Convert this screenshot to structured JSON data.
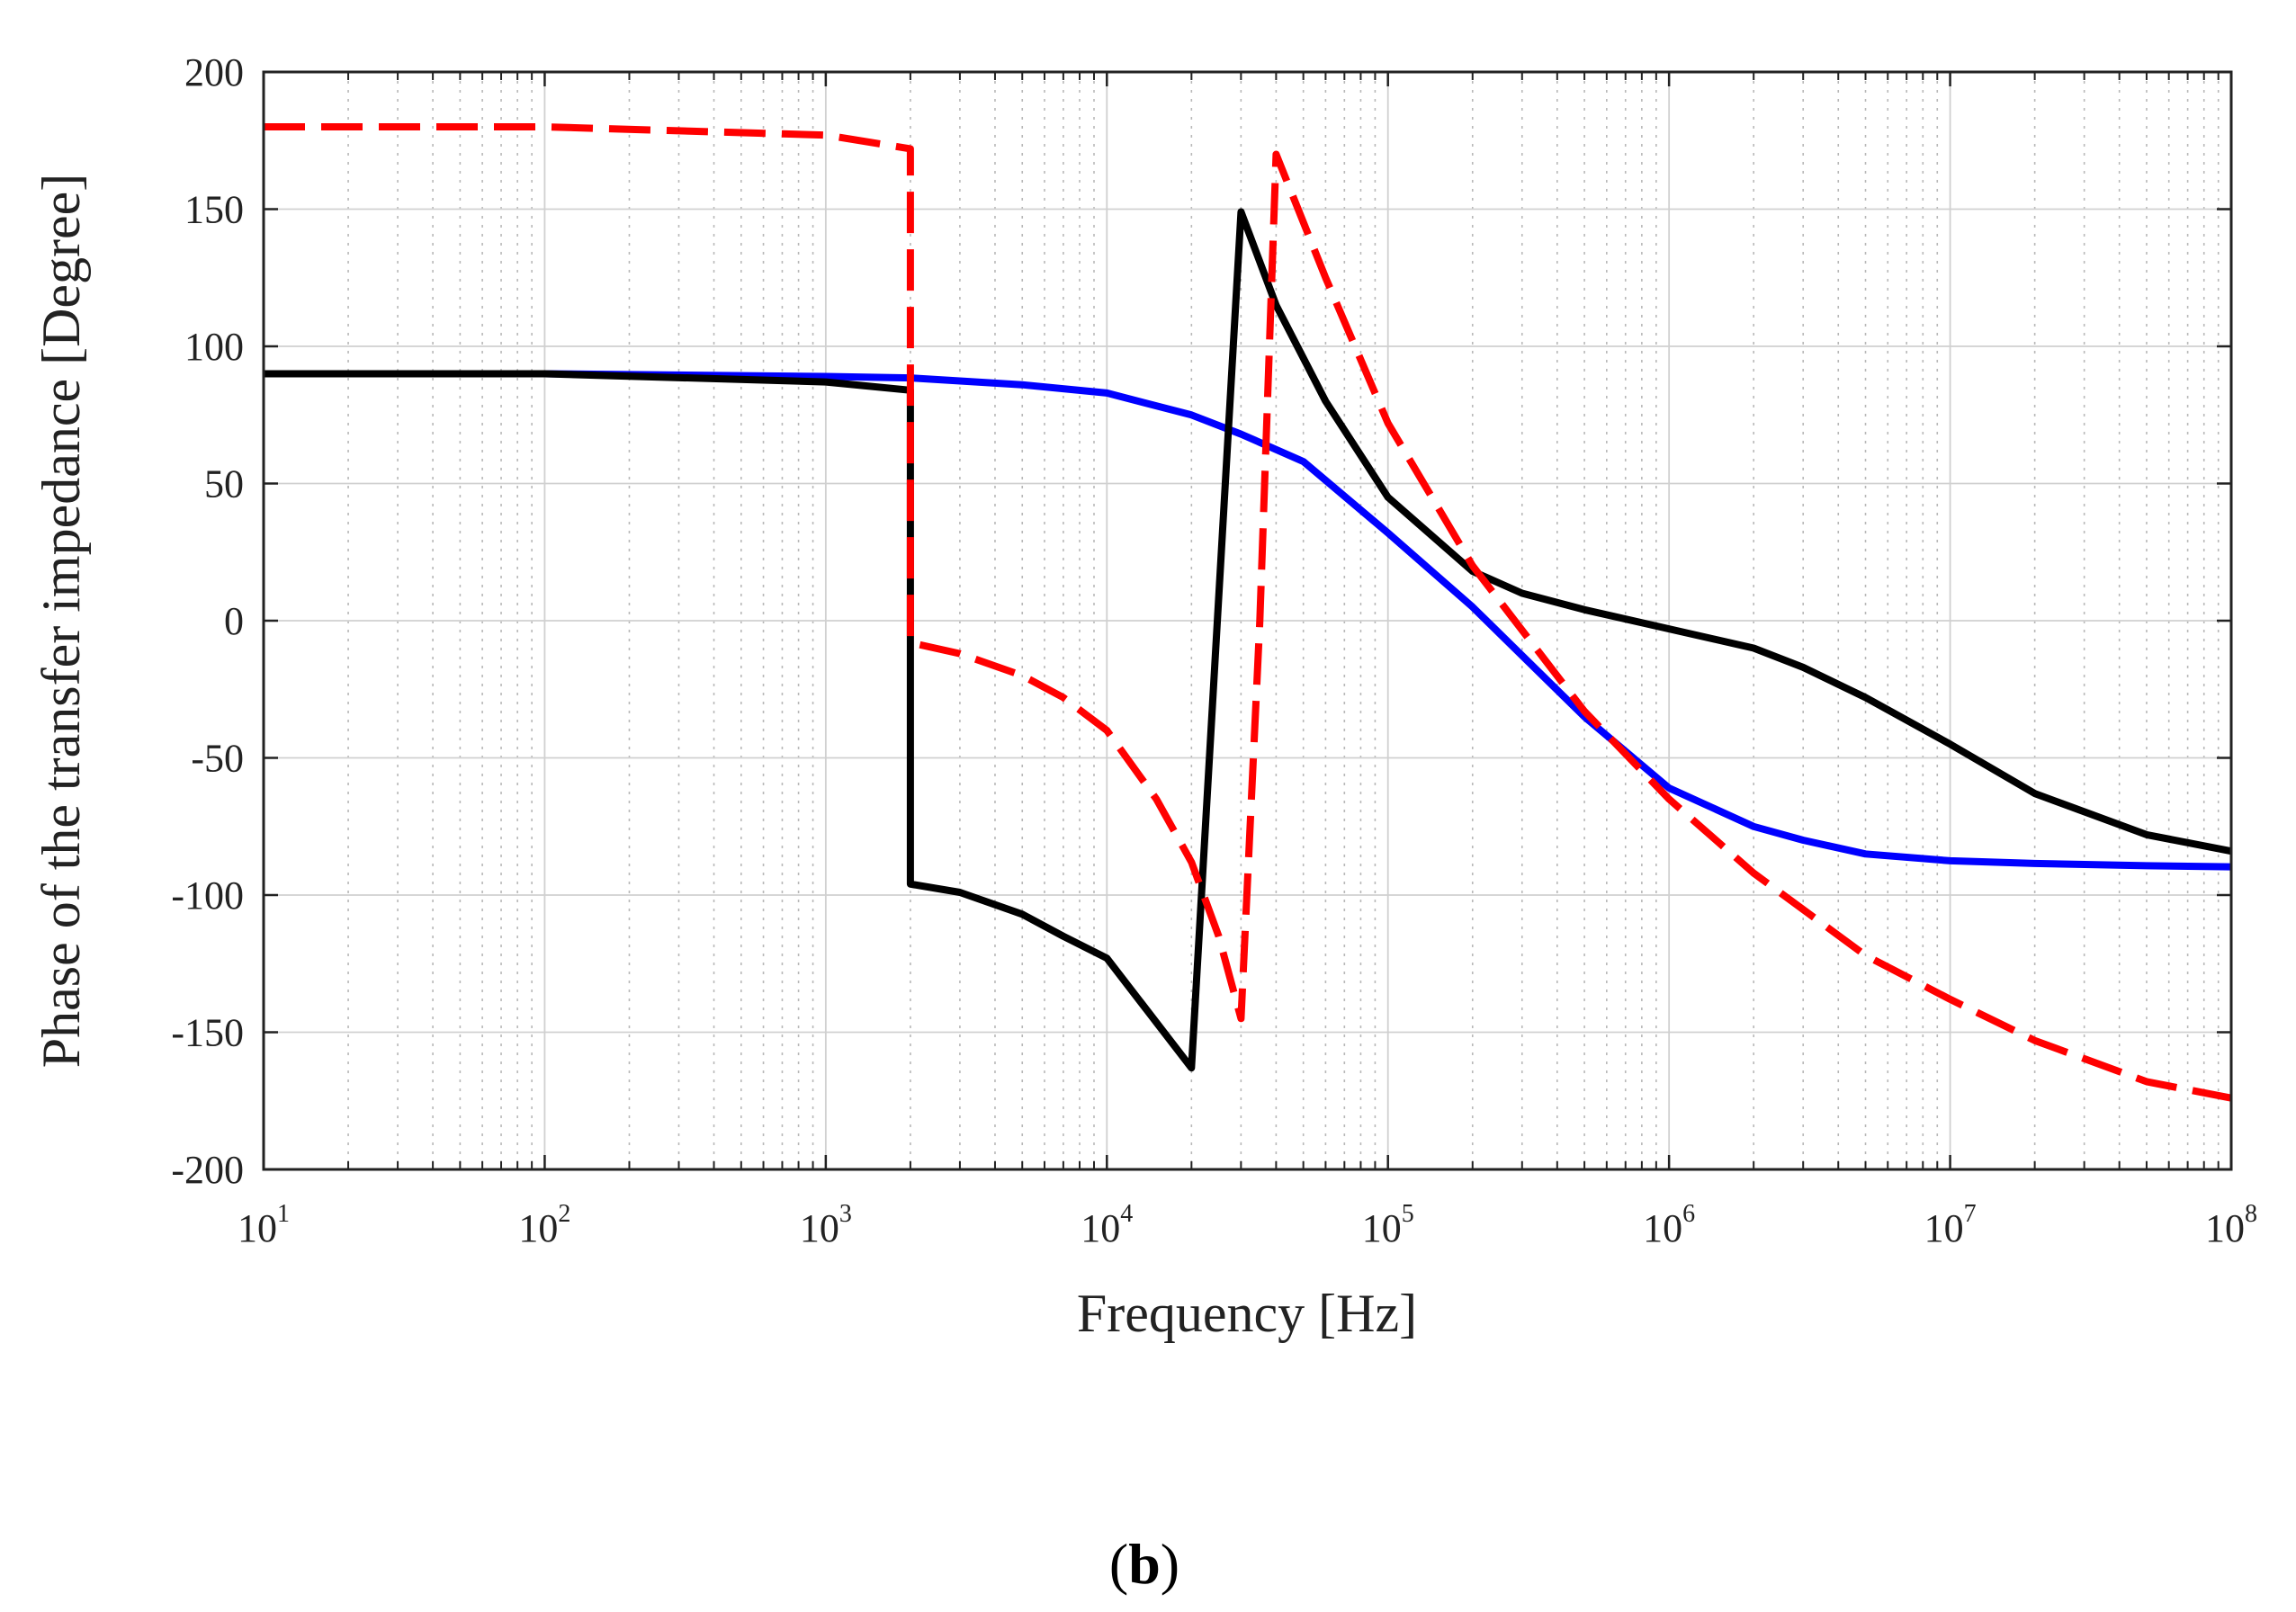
{
  "chart_data": {
    "type": "line",
    "title": "",
    "xlabel": "Frequency [Hz]",
    "ylabel": "Phase of the transfer impedance [Degree]",
    "xscale": "log",
    "xlim": [
      10,
      100000000
    ],
    "ylim": [
      -200,
      200
    ],
    "grid": true,
    "x_ticks": [
      {
        "base": "10",
        "exp": "1",
        "value": 10
      },
      {
        "base": "10",
        "exp": "2",
        "value": 100
      },
      {
        "base": "10",
        "exp": "3",
        "value": 1000
      },
      {
        "base": "10",
        "exp": "4",
        "value": 10000
      },
      {
        "base": "10",
        "exp": "5",
        "value": 100000
      },
      {
        "base": "10",
        "exp": "6",
        "value": 1000000
      },
      {
        "base": "10",
        "exp": "7",
        "value": 10000000
      },
      {
        "base": "10",
        "exp": "8",
        "value": 100000000
      }
    ],
    "y_ticks": [
      {
        "label": "200",
        "value": 200
      },
      {
        "label": "150",
        "value": 150
      },
      {
        "label": "100",
        "value": 100
      },
      {
        "label": "50",
        "value": 50
      },
      {
        "label": "0",
        "value": 0
      },
      {
        "label": "-50",
        "value": -50
      },
      {
        "label": "-100",
        "value": -100
      },
      {
        "label": "-150",
        "value": -150
      },
      {
        "label": "-200",
        "value": -200
      }
    ],
    "panel_label": {
      "open": "(",
      "letter": "b",
      "close": ")"
    },
    "series": [
      {
        "name": "blue",
        "color": "#0000ff",
        "style": "solid",
        "x": [
          10,
          100,
          1000,
          2000,
          5000,
          10000,
          20000,
          30000,
          50000,
          100000,
          200000,
          500000,
          1000000,
          2000000,
          3000000,
          5000000,
          10000000,
          20000000,
          50000000,
          100000000
        ],
        "y": [
          90,
          90,
          89,
          88.5,
          86,
          83,
          75,
          68,
          58,
          32,
          5,
          -35,
          -61,
          -75,
          -80,
          -85,
          -87.5,
          -88.5,
          -89.3,
          -89.7
        ]
      },
      {
        "name": "black",
        "color": "#000000",
        "style": "solid",
        "x": [
          10,
          100,
          1000,
          2000,
          2000,
          3000,
          5000,
          7000,
          10000,
          20000,
          30000,
          40000,
          60000,
          100000,
          200000,
          300000,
          500000,
          1000000,
          2000000,
          3000000,
          5000000,
          10000000,
          20000000,
          50000000,
          100000000
        ],
        "y": [
          90,
          90,
          87,
          84,
          -96,
          -99,
          -107,
          -115,
          -123,
          -163,
          149,
          115,
          80,
          45,
          18,
          10,
          4,
          -3,
          -10,
          -17,
          -28,
          -45,
          -63,
          -78,
          -84
        ]
      },
      {
        "name": "red-dashed",
        "color": "#ff0000",
        "style": "dashed",
        "x": [
          10,
          100,
          1000,
          2000,
          2000,
          3000,
          5000,
          7000,
          10000,
          15000,
          20000,
          25000,
          30000,
          35000,
          40000,
          60000,
          100000,
          200000,
          500000,
          1000000,
          2000000,
          5000000,
          10000000,
          20000000,
          50000000,
          100000000
        ],
        "y": [
          180,
          180,
          177,
          172,
          -8,
          -12,
          -20,
          -28,
          -40,
          -65,
          -88,
          -115,
          -145,
          0,
          170,
          125,
          72,
          20,
          -33,
          -65,
          -92,
          -122,
          -138,
          -153,
          -168,
          -174
        ]
      }
    ]
  }
}
